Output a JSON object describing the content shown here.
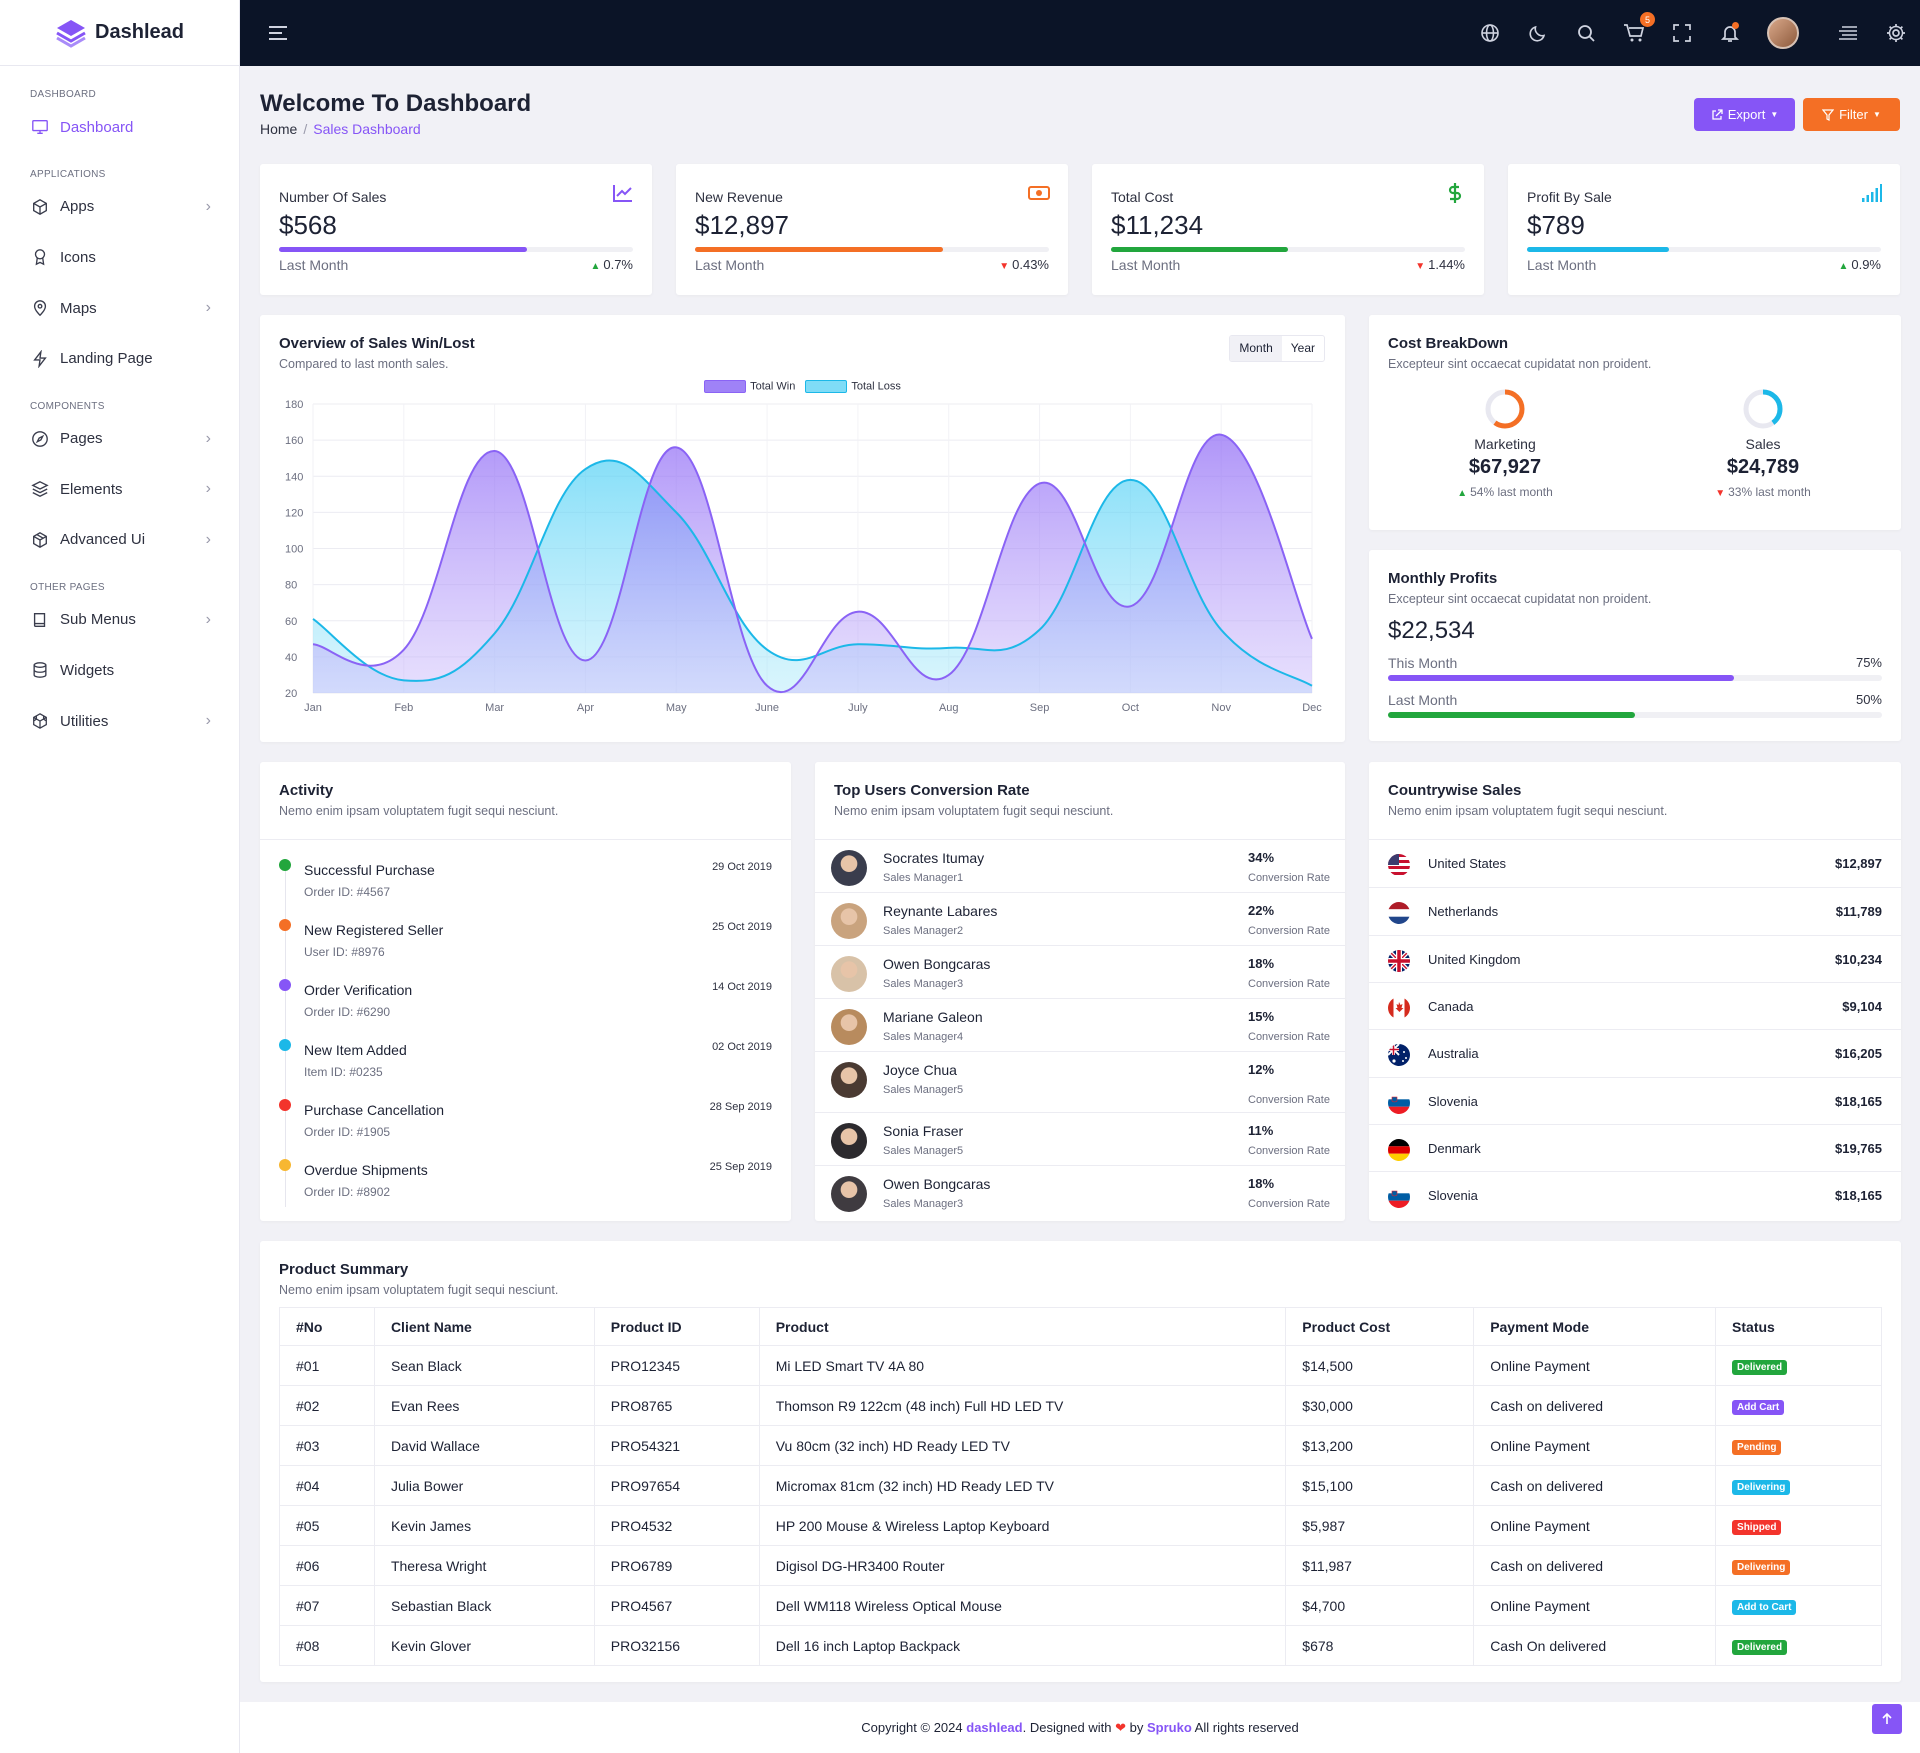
{
  "brand": {
    "name": "Dashlead"
  },
  "sidebar": {
    "sections": [
      {
        "title": "DASHBOARD",
        "items": [
          {
            "label": "Dashboard",
            "icon": "monitor-icon",
            "active": true
          }
        ]
      },
      {
        "title": "APPLICATIONS",
        "items": [
          {
            "label": "Apps",
            "icon": "cube-icon",
            "chevron": true
          },
          {
            "label": "Icons",
            "icon": "award-icon",
            "chevron": false
          },
          {
            "label": "Maps",
            "icon": "map-pin-icon",
            "chevron": true
          },
          {
            "label": "Landing Page",
            "icon": "bolt-icon",
            "chevron": false
          }
        ]
      },
      {
        "title": "COMPONENTS",
        "items": [
          {
            "label": "Pages",
            "icon": "compass-icon",
            "chevron": true
          },
          {
            "label": "Elements",
            "icon": "layers-icon",
            "chevron": true
          },
          {
            "label": "Advanced Ui",
            "icon": "box-icon",
            "chevron": true
          }
        ]
      },
      {
        "title": "OTHER PAGES",
        "items": [
          {
            "label": "Sub Menus",
            "icon": "book-icon",
            "chevron": true
          },
          {
            "label": "Widgets",
            "icon": "database-icon",
            "chevron": false
          },
          {
            "label": "Utilities",
            "icon": "codesandbox-icon",
            "chevron": true
          }
        ]
      }
    ]
  },
  "header": {
    "cart_count": "5"
  },
  "page": {
    "title": "Welcome To Dashboard",
    "breadcrumb": [
      "Home",
      "Sales Dashboard"
    ],
    "export_label": "Export",
    "filter_label": "Filter"
  },
  "stats": [
    {
      "label": "Number Of Sales",
      "value": "$568",
      "foot": "Last Month",
      "change": "0.7%",
      "dir": "up",
      "color": "#8655f6",
      "progress": 0.7,
      "icon": "line-chart-icon"
    },
    {
      "label": "New Revenue",
      "value": "$12,897",
      "foot": "Last Month",
      "change": "0.43%",
      "dir": "down",
      "color": "#f46f25",
      "progress": 0.7,
      "icon": "money-icon"
    },
    {
      "label": "Total Cost",
      "value": "$11,234",
      "foot": "Last Month",
      "change": "1.44%",
      "dir": "down",
      "color": "#22a63d",
      "progress": 0.5,
      "icon": "dollar-icon"
    },
    {
      "label": "Profit By Sale",
      "value": "$789",
      "foot": "Last Month",
      "change": "0.9%",
      "dir": "up",
      "color": "#1cb8e8",
      "progress": 0.4,
      "icon": "signal-icon"
    }
  ],
  "overview": {
    "title": "Overview of Sales Win/Lost",
    "subtitle": "Compared to last month sales.",
    "toggle": [
      "Month",
      "Year"
    ]
  },
  "chart_data": {
    "type": "area",
    "categories": [
      "Jan",
      "Feb",
      "Mar",
      "Apr",
      "May",
      "June",
      "July",
      "Aug",
      "Sep",
      "Oct",
      "Nov",
      "Dec"
    ],
    "series": [
      {
        "name": "Total Win",
        "color": "#8a63f5",
        "values": [
          47,
          44,
          154,
          38,
          156,
          24,
          65,
          30,
          136,
          68,
          163,
          50
        ]
      },
      {
        "name": "Total Loss",
        "color": "#4fd0f5",
        "values": [
          61,
          27,
          53,
          144,
          120,
          44,
          47,
          45,
          55,
          138,
          55,
          24
        ]
      }
    ],
    "ylim": [
      20,
      180
    ],
    "yticks": [
      20,
      40,
      60,
      80,
      100,
      120,
      140,
      160,
      180
    ],
    "legend": "top-center",
    "grid": true
  },
  "cost_breakdown": {
    "title": "Cost BreakDown",
    "subtitle": "Excepteur sint occaecat cupidatat non proident.",
    "items": [
      {
        "label": "Marketing",
        "value": "$67,927",
        "change": "54% last month",
        "dir": "up",
        "color": "#f46f25",
        "ring": 0.6
      },
      {
        "label": "Sales",
        "value": "$24,789",
        "change": "33% last month",
        "dir": "down",
        "color": "#1cb8e8",
        "ring": 0.4
      }
    ]
  },
  "monthly_profits": {
    "title": "Monthly Profits",
    "subtitle": "Excepteur sint occaecat cupidatat non proident.",
    "value": "$22,534",
    "rows": [
      {
        "label": "This Month",
        "pct": "75%",
        "progress": 0.7,
        "color": "#8655f6"
      },
      {
        "label": "Last Month",
        "pct": "50%",
        "progress": 0.5,
        "color": "#22a63d"
      }
    ]
  },
  "activity": {
    "title": "Activity",
    "subtitle": "Nemo enim ipsam voluptatem fugit sequi nesciunt.",
    "items": [
      {
        "title": "Successful Purchase",
        "id": "Order ID: #4567",
        "date": "29 Oct 2019",
        "color": "#22a63d"
      },
      {
        "title": "New Registered Seller",
        "id": "User ID: #8976",
        "date": "25 Oct 2019",
        "color": "#f46f25"
      },
      {
        "title": "Order Verification",
        "id": "Order ID: #6290",
        "date": "14 Oct 2019",
        "color": "#8655f6"
      },
      {
        "title": "New Item Added",
        "id": "Item ID: #0235",
        "date": "02 Oct 2019",
        "color": "#1cb8e8"
      },
      {
        "title": "Purchase Cancellation",
        "id": "Order ID: #1905",
        "date": "28 Sep 2019",
        "color": "#f3342c"
      },
      {
        "title": "Overdue Shipments",
        "id": "Order ID: #8902",
        "date": "25 Sep 2019",
        "color": "#f7b731"
      }
    ]
  },
  "top_users": {
    "title": "Top Users Conversion Rate",
    "subtitle": "Nemo enim ipsam voluptatem fugit sequi nesciunt.",
    "rate_label": "Conversion Rate",
    "users": [
      {
        "name": "Socrates Itumay",
        "role": "Sales Manager1",
        "pct": "34%"
      },
      {
        "name": "Reynante Labares",
        "role": "Sales Manager2",
        "pct": "22%"
      },
      {
        "name": "Owen Bongcaras",
        "role": "Sales Manager3",
        "pct": "18%"
      },
      {
        "name": "Mariane Galeon",
        "role": "Sales Manager4",
        "pct": "15%"
      },
      {
        "name": "Joyce Chua",
        "role": "Sales Manager5",
        "pct": "12%"
      },
      {
        "name": "Sonia Fraser",
        "role": "Sales Manager5",
        "pct": "11%"
      },
      {
        "name": "Owen Bongcaras",
        "role": "Sales Manager3",
        "pct": "18%"
      }
    ]
  },
  "countries": {
    "title": "Countrywise Sales",
    "subtitle": "Nemo enim ipsam voluptatem fugit sequi nesciunt.",
    "rows": [
      {
        "name": "United States",
        "value": "$12,897",
        "flag": "us-flag-icon"
      },
      {
        "name": "Netherlands",
        "value": "$11,789",
        "flag": "nl-flag-icon"
      },
      {
        "name": "United Kingdom",
        "value": "$10,234",
        "flag": "uk-flag-icon"
      },
      {
        "name": "Canada",
        "value": "$9,104",
        "flag": "ca-flag-icon"
      },
      {
        "name": "Australia",
        "value": "$16,205",
        "flag": "au-flag-icon"
      },
      {
        "name": "Slovenia",
        "value": "$18,165",
        "flag": "si-flag-icon"
      },
      {
        "name": "Denmark",
        "value": "$19,765",
        "flag": "de-flag-icon"
      },
      {
        "name": "Slovenia",
        "value": "$18,165",
        "flag": "si-flag-icon"
      }
    ]
  },
  "products": {
    "title": "Product Summary",
    "subtitle": "Nemo enim ipsam voluptatem fugit sequi nesciunt.",
    "headers": [
      "#No",
      "Client Name",
      "Product ID",
      "Product",
      "Product Cost",
      "Payment Mode",
      "Status"
    ],
    "rows": [
      [
        "#01",
        "Sean Black",
        "PRO12345",
        "Mi LED Smart TV 4A 80",
        "$14,500",
        "Online Payment",
        "Delivered"
      ],
      [
        "#02",
        "Evan Rees",
        "PRO8765",
        "Thomson R9 122cm (48 inch) Full HD LED TV",
        "$30,000",
        "Cash on delivered",
        "Add Cart"
      ],
      [
        "#03",
        "David Wallace",
        "PRO54321",
        "Vu 80cm (32 inch) HD Ready LED TV",
        "$13,200",
        "Online Payment",
        "Pending"
      ],
      [
        "#04",
        "Julia Bower",
        "PRO97654",
        "Micromax 81cm (32 inch) HD Ready LED TV",
        "$15,100",
        "Cash on delivered",
        "Delivering"
      ],
      [
        "#05",
        "Kevin James",
        "PRO4532",
        "HP 200 Mouse & Wireless Laptop Keyboard",
        "$5,987",
        "Online Payment",
        "Shipped"
      ],
      [
        "#06",
        "Theresa Wright",
        "PRO6789",
        "Digisol DG-HR3400 Router",
        "$11,987",
        "Cash on delivered",
        "Delivering"
      ],
      [
        "#07",
        "Sebastian Black",
        "PRO4567",
        "Dell WM118 Wireless Optical Mouse",
        "$4,700",
        "Online Payment",
        "Add to Cart"
      ],
      [
        "#08",
        "Kevin Glover",
        "PRO32156",
        "Dell 16 inch Laptop Backpack",
        "$678",
        "Cash On delivered",
        "Delivered"
      ]
    ],
    "status_colors": [
      "#22a63d",
      "#8655f6",
      "#f46f25",
      "#1cb8e8",
      "#f3342c",
      "#f46f25",
      "#1cb8e8",
      "#22a63d"
    ]
  },
  "footer": {
    "prefix": "Copyright © 2024 ",
    "brand": "dashlead",
    "middle": ". Designed with ",
    "by": " by ",
    "author": "Spruko",
    "suffix": " All rights reserved"
  }
}
